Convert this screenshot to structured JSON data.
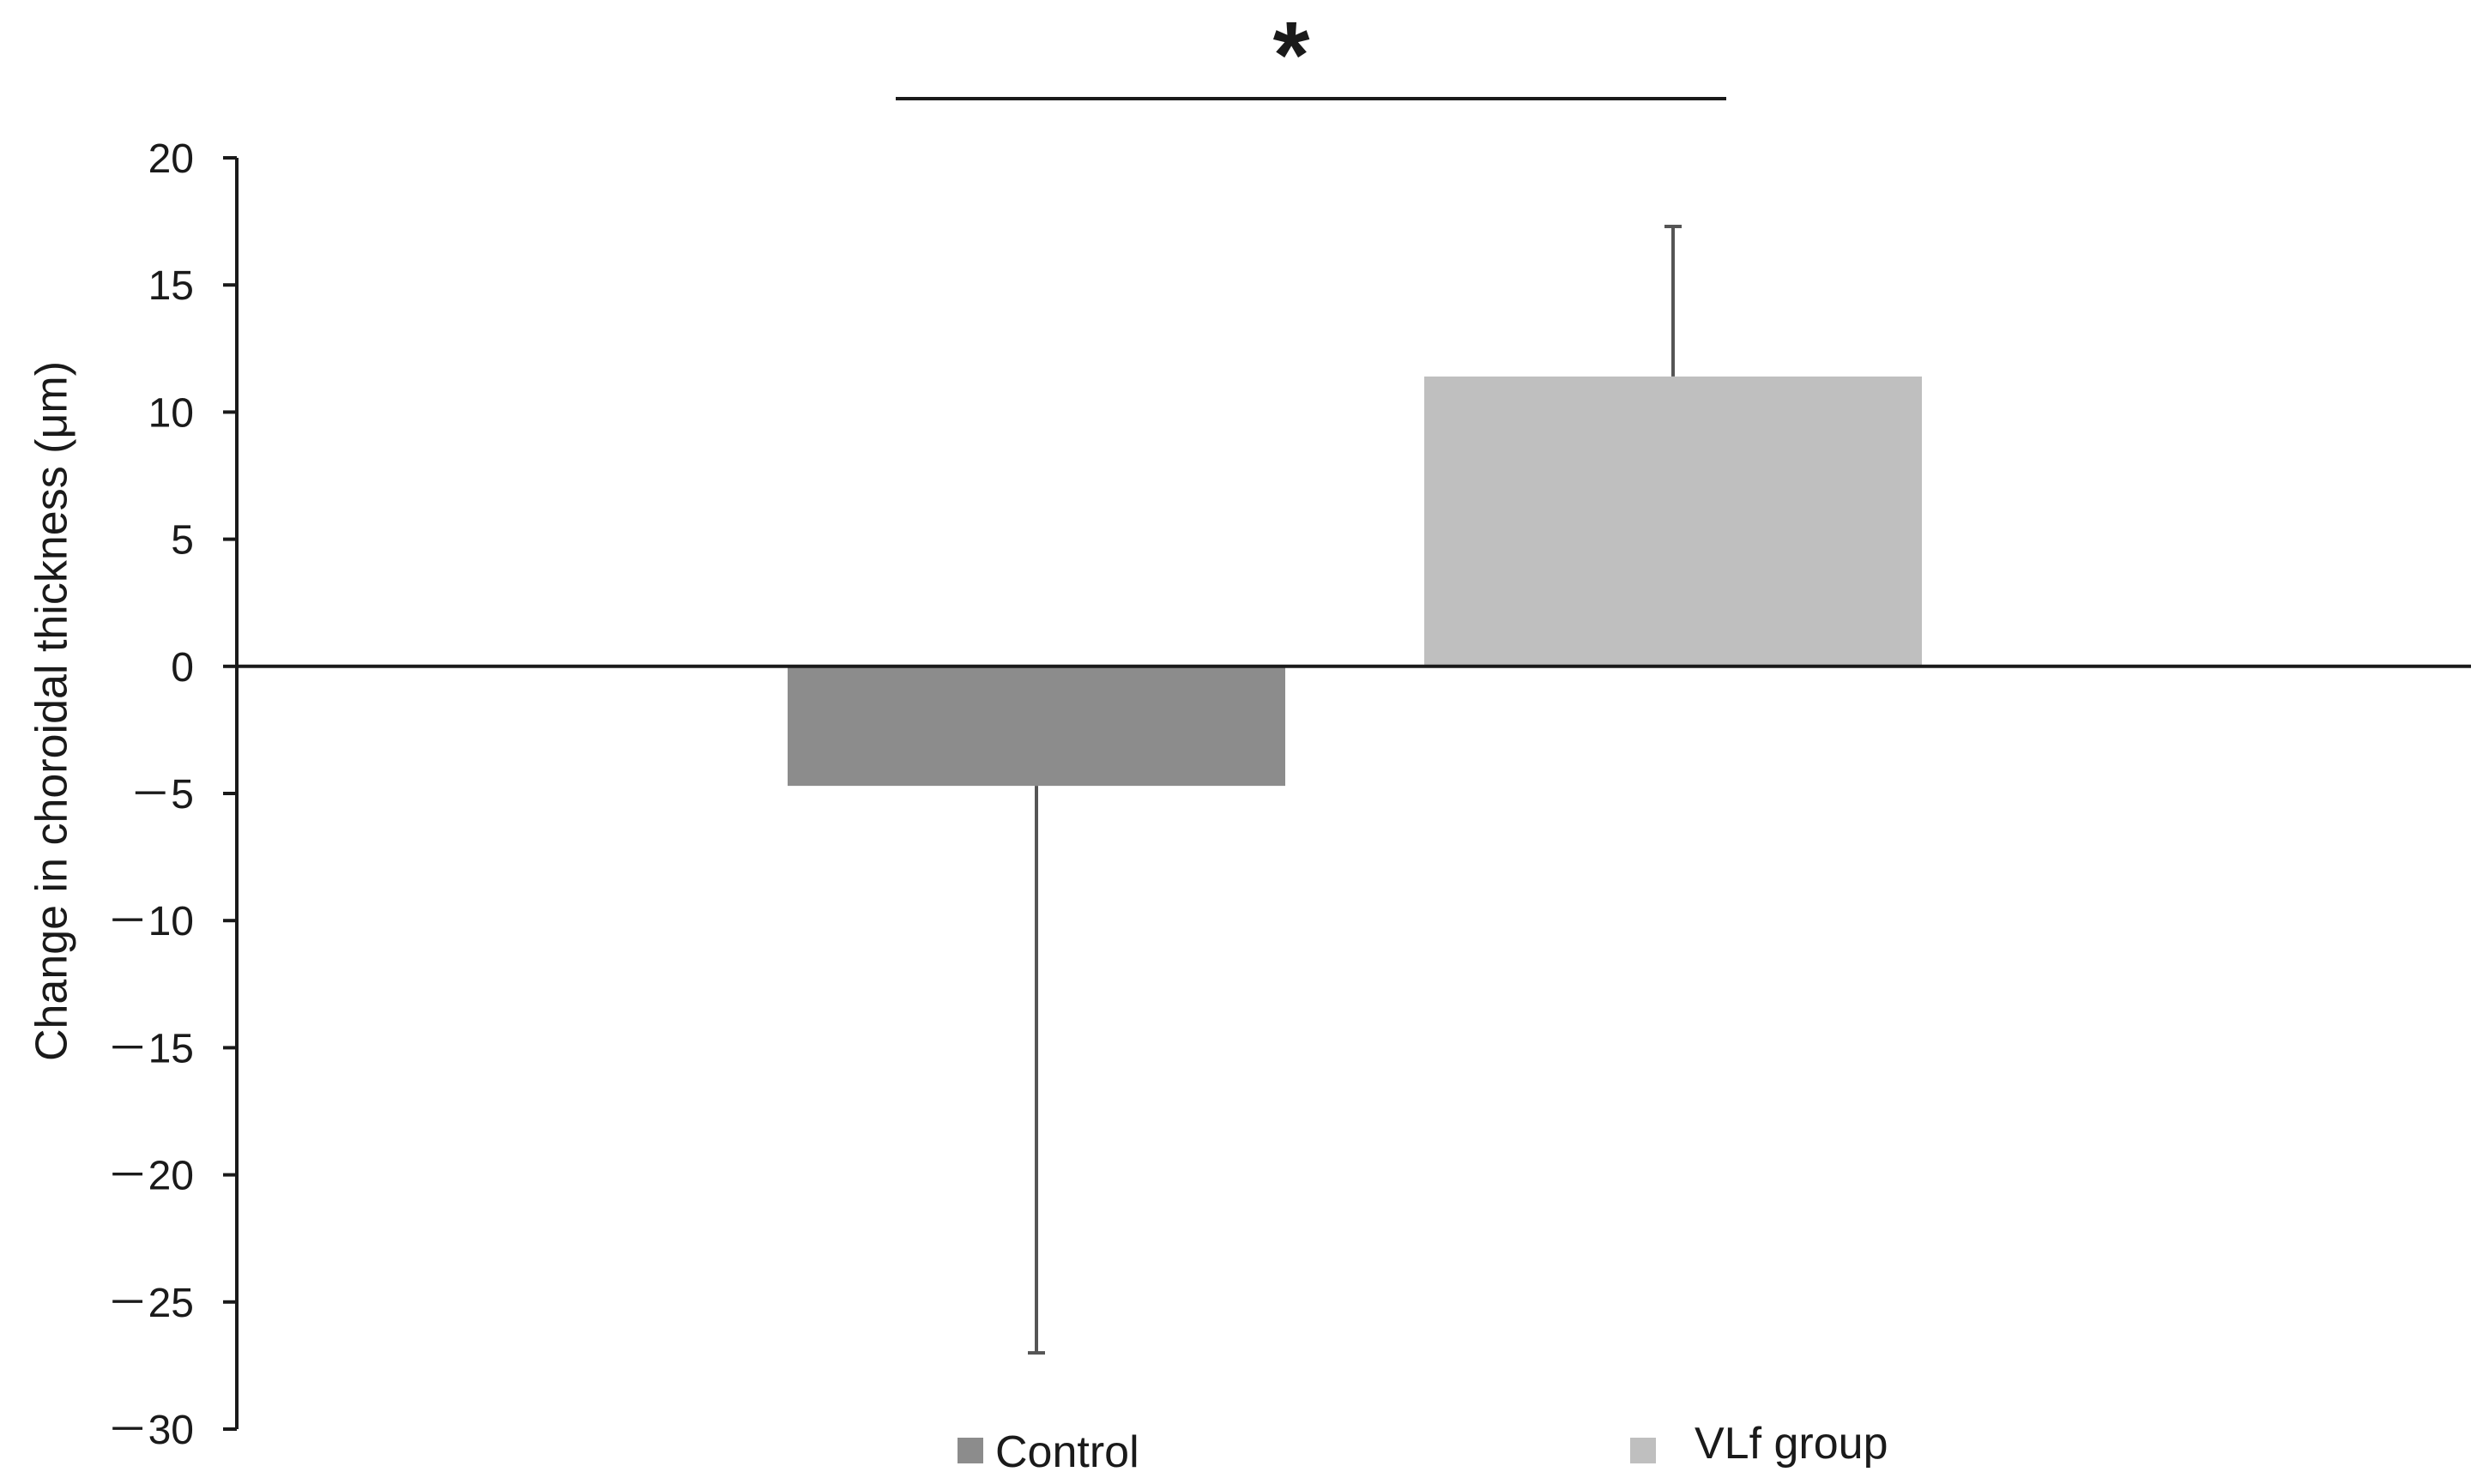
{
  "chart_data": {
    "type": "bar",
    "categories": [
      "Control",
      "VLf group"
    ],
    "values": [
      -4.7,
      11.4
    ],
    "error_bars": [
      {
        "upper": -4.7,
        "lower": -27.0
      },
      {
        "upper": 17.3,
        "lower": 11.4
      }
    ],
    "ylabel": "Change in choroidal thickness (μm)",
    "ylim": [
      -30,
      20
    ],
    "yticks": [
      20,
      15,
      10,
      5,
      0,
      -5,
      -10,
      -15,
      -20,
      -25,
      -30
    ],
    "ytick_labels": [
      "20",
      "15",
      "10",
      "5",
      "0",
      "－5",
      "－10",
      "－15",
      "－20",
      "－25",
      "－30"
    ],
    "significance": "*",
    "legend": [
      {
        "label": "Control",
        "color": "#8c8c8c"
      },
      {
        "label": "VLf group",
        "color": "#bfbfbf"
      }
    ],
    "legend_position": "bottom",
    "grid": false
  }
}
